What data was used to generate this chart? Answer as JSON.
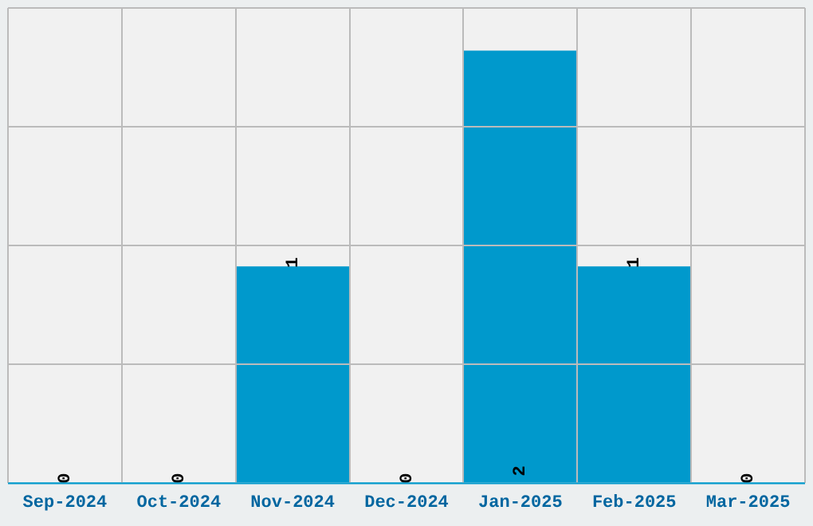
{
  "chart_data": {
    "type": "bar",
    "categories": [
      "Sep-2024",
      "Oct-2024",
      "Nov-2024",
      "Dec-2024",
      "Jan-2025",
      "Feb-2025",
      "Mar-2025"
    ],
    "values": [
      0,
      0,
      1,
      0,
      2,
      1,
      0
    ],
    "color": "#0099cc",
    "ylim": [
      0,
      2.2
    ],
    "yticks": [
      {
        "value": 0.55,
        "label": null
      },
      {
        "value": 1.1,
        "label": null
      },
      {
        "value": 1.65,
        "label": null
      },
      {
        "value": 2.2,
        "label": null
      }
    ],
    "tick_labels": "x",
    "grid": true,
    "data_labels": true
  }
}
